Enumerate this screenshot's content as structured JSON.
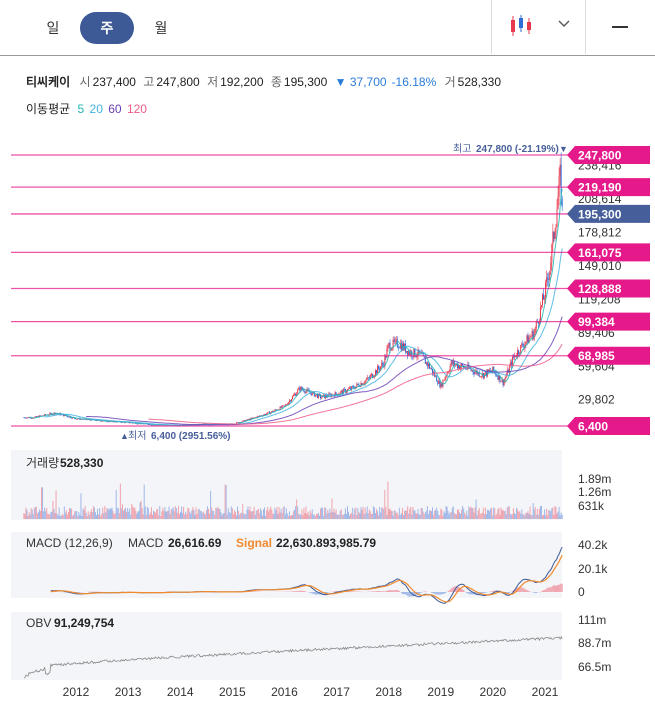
{
  "tabs": [
    {
      "label": "일",
      "active": false
    },
    {
      "label": "주",
      "active": true
    },
    {
      "label": "월",
      "active": false
    }
  ],
  "toolbar": {
    "chart_type_icon": "candlestick-icon",
    "dropdown_icon": "chevron-down-icon",
    "menu_icon": "menu-icon"
  },
  "quote": {
    "name": "티씨케이",
    "open_label": "시",
    "open": "237,400",
    "high_label": "고",
    "high": "247,800",
    "low_label": "저",
    "low": "192,200",
    "close_label": "종",
    "close": "195,300",
    "change": "▼ 37,700",
    "change_pct": "-16.18%",
    "volume_label": "거",
    "volume": "528,330"
  },
  "moving_average": {
    "label": "이동평균",
    "periods": [
      {
        "value": "5",
        "color": "#21b6b6"
      },
      {
        "value": "20",
        "color": "#41b2e0"
      },
      {
        "value": "60",
        "color": "#6a3fb5"
      },
      {
        "value": "120",
        "color": "#ee5b86"
      }
    ]
  },
  "colors": {
    "up": "#e8394d",
    "down": "#2f6cd4",
    "price_tag": "#e6198a",
    "current_tag": "#465e99"
  },
  "chart_data": [
    {
      "type": "candlestick",
      "x_ticks": [
        "2012",
        "2013",
        "2014",
        "2015",
        "2016",
        "2017",
        "2018",
        "2019",
        "2020",
        "2021"
      ],
      "ylim": [
        4000,
        255000
      ],
      "y_ticks": [
        "238,416",
        "208,614",
        "178,812",
        "149,010",
        "119,208",
        "89,406",
        "59,604",
        "29,802"
      ],
      "y_tick_values": [
        238416,
        208614,
        178812,
        149010,
        119208,
        89406,
        59604,
        29802
      ],
      "price_levels": [
        {
          "label": "247,800",
          "value": 247800
        },
        {
          "label": "219,190",
          "value": 219190
        },
        {
          "label": "195,300",
          "value": 195300,
          "current": true
        },
        {
          "label": "161,075",
          "value": 161075
        },
        {
          "label": "128,888",
          "value": 128888
        },
        {
          "label": "99,384",
          "value": 99384
        },
        {
          "label": "68,985",
          "value": 68985
        },
        {
          "label": "6,400",
          "value": 6400
        }
      ],
      "annotations": {
        "high_label": "최고",
        "high_value": "247,800 (-21.19%)",
        "high_marker": "▼",
        "low_label": "최저",
        "low_value": "6,400 (2951.56%)",
        "low_marker": "▲"
      },
      "series": [
        {
          "date": 2011.2,
          "value": 14000
        },
        {
          "date": 2011.6,
          "value": 18000
        },
        {
          "date": 2012.0,
          "value": 13000
        },
        {
          "date": 2012.5,
          "value": 11000
        },
        {
          "date": 2013.0,
          "value": 9500
        },
        {
          "date": 2013.5,
          "value": 7500
        },
        {
          "date": 2014.0,
          "value": 7000
        },
        {
          "date": 2014.5,
          "value": 8000
        },
        {
          "date": 2015.0,
          "value": 8000
        },
        {
          "date": 2015.3,
          "value": 12000
        },
        {
          "date": 2015.7,
          "value": 18000
        },
        {
          "date": 2016.0,
          "value": 24000
        },
        {
          "date": 2016.3,
          "value": 40000
        },
        {
          "date": 2016.7,
          "value": 32000
        },
        {
          "date": 2017.0,
          "value": 35000
        },
        {
          "date": 2017.3,
          "value": 40000
        },
        {
          "date": 2017.6,
          "value": 48000
        },
        {
          "date": 2017.9,
          "value": 62000
        },
        {
          "date": 2018.0,
          "value": 78000
        },
        {
          "date": 2018.2,
          "value": 80000
        },
        {
          "date": 2018.4,
          "value": 72000
        },
        {
          "date": 2018.6,
          "value": 70000
        },
        {
          "date": 2018.8,
          "value": 58000
        },
        {
          "date": 2019.0,
          "value": 42000
        },
        {
          "date": 2019.2,
          "value": 62000
        },
        {
          "date": 2019.5,
          "value": 58000
        },
        {
          "date": 2019.8,
          "value": 52000
        },
        {
          "date": 2020.0,
          "value": 56000
        },
        {
          "date": 2020.2,
          "value": 45000
        },
        {
          "date": 2020.4,
          "value": 68000
        },
        {
          "date": 2020.6,
          "value": 80000
        },
        {
          "date": 2020.8,
          "value": 90000
        },
        {
          "date": 2021.0,
          "value": 125000
        },
        {
          "date": 2021.1,
          "value": 150000
        },
        {
          "date": 2021.2,
          "value": 190000
        },
        {
          "date": 2021.3,
          "value": 230000
        },
        {
          "date": 2021.33,
          "value": 195300
        }
      ]
    },
    {
      "type": "bar",
      "title": "거래량",
      "value": "528,330",
      "y_ticks": [
        "1.89m",
        "1.26m",
        "631k"
      ]
    },
    {
      "type": "line",
      "title": "MACD (12,26,9)",
      "macd_label": "MACD",
      "macd_value": "26,616.69",
      "signal_label": "Signal",
      "signal_value": "22,630.893,985.79",
      "y_ticks": [
        "40.2k",
        "20.1k",
        "0"
      ]
    },
    {
      "type": "line",
      "title": "OBV",
      "value": "91,249,754",
      "y_ticks": [
        "111m",
        "88.7m",
        "66.5m"
      ]
    }
  ]
}
